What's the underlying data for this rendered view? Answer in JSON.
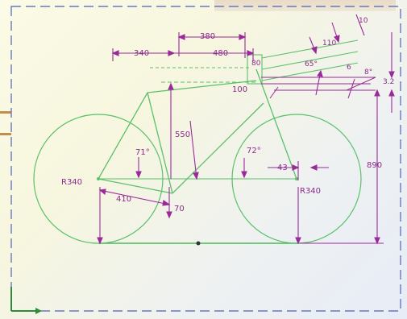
{
  "drawing": {
    "colors": {
      "frame_green": "#5bc06a",
      "dimension_magenta": "#9a2a9a",
      "border_blue": "#6a78b8",
      "ground": "#4eb85c"
    },
    "dimensions": {
      "top_width": "380",
      "left_offset": "340",
      "top_tube": "480",
      "head_tube_length": "80",
      "stem_offset": "100",
      "seat_tube_label": "550",
      "seat_angle": "71°",
      "head_angle": "72°",
      "fork_offset": "43",
      "rear_wheel_radius": "R340",
      "front_wheel_radius": "R340",
      "chainstay": "410",
      "bb_drop": "70",
      "height": "890",
      "angle_small": "10",
      "stem_len": "110",
      "angle_a": "65°",
      "angle_b": "8°",
      "angle_c": "6",
      "side_label": "3.2"
    }
  }
}
